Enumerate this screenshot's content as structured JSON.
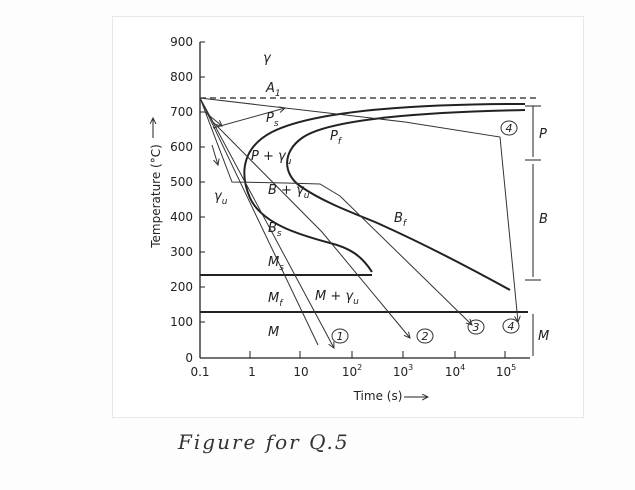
{
  "axes": {
    "ylabel": "Temperature (°C)",
    "xlabel": "Time (s)",
    "y_ticks": [
      "900",
      "800",
      "700",
      "600",
      "500",
      "400",
      "300",
      "200",
      "100",
      "0"
    ],
    "x_ticks": [
      {
        "base": "0.1",
        "exp": ""
      },
      {
        "base": "1",
        "exp": ""
      },
      {
        "base": "10",
        "exp": ""
      },
      {
        "base": "10",
        "exp": "2"
      },
      {
        "base": "10",
        "exp": "3"
      },
      {
        "base": "10",
        "exp": "4"
      },
      {
        "base": "10",
        "exp": "5"
      }
    ]
  },
  "labels": {
    "gamma": "γ",
    "a1": "A",
    "a1_sub": "1",
    "ps": "P",
    "ps_sub": "s",
    "pf": "P",
    "pf_sub": "f",
    "p_gamma": "P + γ",
    "p_gamma_sub": "u",
    "b_gamma": "B + γ",
    "b_gamma_sub": "u",
    "gamma_u": "γ",
    "gamma_u_sub": "u",
    "bs": "B",
    "bs_sub": "s",
    "bf": "B",
    "bf_sub": "f",
    "ms": "M",
    "ms_sub": "s",
    "mf": "M",
    "mf_sub": "f",
    "m_gamma": "M + γ",
    "m_gamma_sub": "u",
    "m": "M",
    "region_p": "P",
    "region_b": "B",
    "region_m": "M"
  },
  "path_markers": [
    "1",
    "2",
    "3",
    "4",
    "4"
  ],
  "caption": "Figure for Q.5"
}
